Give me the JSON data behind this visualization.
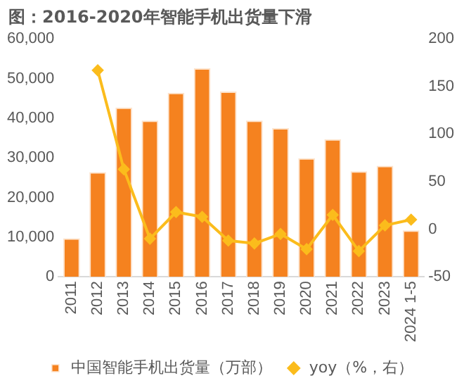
{
  "chart_data": {
    "type": "bar",
    "title": "图：2016-2020年智能手机出货量下滑",
    "categories": [
      "2011",
      "2012",
      "2013",
      "2014",
      "2015",
      "2016",
      "2017",
      "2018",
      "2019",
      "2020",
      "2021",
      "2022",
      "2023",
      "2024 1-5"
    ],
    "series": [
      {
        "name": "中国智能手机出货量（万部）",
        "color": "#f5821f",
        "values": [
          9700,
          26400,
          42700,
          39400,
          46400,
          52600,
          46700,
          39400,
          37500,
          29900,
          34700,
          26600,
          28000,
          11700
        ]
      },
      {
        "name": "yoy（%，右）",
        "type": "line",
        "axis": "y2",
        "color": "#fbbc1c",
        "marker": "diamond",
        "values": [
          null,
          167,
          63,
          -10,
          18,
          13,
          -12,
          -15,
          -5,
          -21,
          15,
          -23,
          4,
          10
        ]
      }
    ],
    "ylim": [
      0,
      60000
    ],
    "yticks": [
      0,
      {
        "value": 10000,
        "label": "10,000"
      },
      {
        "value": 20000,
        "label": "20,000"
      },
      {
        "value": 30000,
        "label": "30,000"
      },
      {
        "value": 40000,
        "label": "40,000"
      },
      {
        "value": 50000,
        "label": "50,000"
      },
      {
        "value": 60000,
        "label": "60,000"
      }
    ],
    "y2lim": [
      -50,
      200
    ],
    "y2ticks": [
      -50,
      0,
      50,
      100,
      150,
      200
    ],
    "grid": false,
    "legend": "bottom"
  }
}
